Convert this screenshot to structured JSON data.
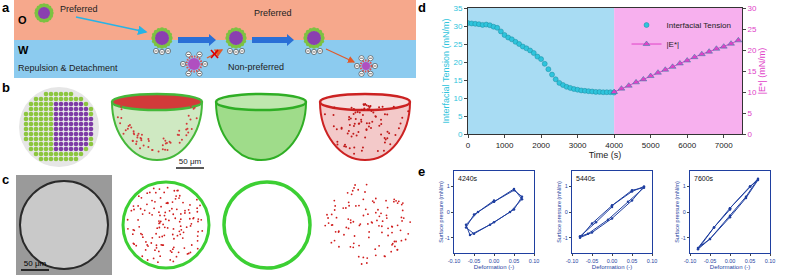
{
  "figure_panels": {
    "a": {
      "label": "a",
      "oil": "O",
      "water": "W",
      "arrow_top": "Preferred",
      "left": "Repulsion & Detachment",
      "cross": "Non-preferred",
      "arrow_right": "Preferred"
    },
    "b": {
      "label": "b",
      "scale_bar": "50 μm"
    },
    "c": {
      "label": "c",
      "scale_bar": "50 μm"
    }
  },
  "chart_data": [
    {
      "panel": "d",
      "type": "scatter",
      "xlabel": "Time (s)",
      "ylabel": "Interfacial Tension (mN/m)",
      "y2label": "|E*| (mN/m)",
      "xlim": [
        0,
        7500
      ],
      "xticks": [
        0,
        1000,
        2000,
        3000,
        4000,
        5000,
        6000,
        7000
      ],
      "ylim": [
        0,
        35
      ],
      "yticks": [
        0,
        5,
        10,
        15,
        20,
        25,
        30,
        35
      ],
      "y2lim": [
        0,
        30
      ],
      "y2ticks": [
        0,
        5,
        10,
        15,
        20,
        25,
        30
      ],
      "legend": "top right",
      "shaded_regions": [
        {
          "x0": 0,
          "x1": 4000,
          "color": "#a8dcf3"
        },
        {
          "x0": 4000,
          "x1": 7500,
          "color": "#f7b0ee"
        }
      ],
      "series": [
        {
          "name": "Interfacial Tension",
          "color": "#2ec4dc",
          "marker": "circle",
          "x": [
            0,
            100,
            200,
            300,
            400,
            500,
            600,
            700,
            800,
            900,
            1000,
            1100,
            1200,
            1300,
            1400,
            1500,
            1600,
            1700,
            1800,
            1900,
            2000,
            2100,
            2200,
            2300,
            2400,
            2500,
            2600,
            2700,
            2800,
            2900,
            3000,
            3100,
            3200,
            3300,
            3400,
            3500,
            3600,
            3700,
            3800,
            3900,
            4000
          ],
          "values": [
            30.8,
            30.7,
            30.6,
            30.5,
            30.3,
            30.4,
            30.2,
            29.8,
            29.5,
            28.5,
            27.5,
            26.8,
            26.3,
            25.6,
            25.0,
            24.3,
            23.8,
            23.2,
            22.5,
            21.5,
            20.8,
            19.5,
            18.0,
            16.5,
            15.2,
            14.2,
            13.6,
            13.1,
            12.8,
            12.5,
            12.3,
            12.1,
            12.0,
            11.9,
            11.8,
            11.7,
            11.7,
            11.6,
            11.6,
            11.6,
            11.5
          ]
        },
        {
          "name": "|E*|",
          "color": "#e040c8",
          "marker": "triangle-up",
          "line_style": "solid",
          "axis": "y2",
          "x": [
            4000,
            4200,
            4400,
            4600,
            4800,
            5000,
            5200,
            5400,
            5600,
            5800,
            6000,
            6200,
            6400,
            6600,
            6800,
            7000,
            7200,
            7400
          ],
          "values": [
            10,
            10.8,
            11.5,
            12.3,
            13,
            13.8,
            14.6,
            15.3,
            16,
            16.8,
            17.5,
            18.3,
            19,
            19.6,
            20.3,
            20.8,
            21.5,
            22.3
          ]
        }
      ]
    },
    {
      "panel": "e",
      "type": "line",
      "title": "4240s",
      "color": "#1f3fa0",
      "marker": "circle",
      "xlabel": "Deformation (-)",
      "ylabel": "Surface pressure (mN/m)",
      "xlim": [
        -0.1,
        0.1
      ],
      "xticks": [
        {
          "value": -0.1,
          "label": "-0.10"
        },
        {
          "value": -0.05,
          "label": "-0.05"
        },
        {
          "value": 0,
          "label": "0.00"
        },
        {
          "value": 0.05,
          "label": "0.05"
        },
        {
          "value": 0.1,
          "label": "0.10"
        }
      ],
      "ylim": [
        -1.6,
        1.6
      ],
      "yticks": [
        -1,
        0,
        1
      ],
      "x": [
        0,
        0.05,
        0.07,
        0.05,
        0,
        -0.05,
        -0.07,
        -0.05,
        0,
        0.05,
        0.07,
        0.04,
        -0.01,
        -0.06,
        -0.07,
        -0.04,
        0
      ],
      "values": [
        0.4,
        0.85,
        0.6,
        0.1,
        -0.4,
        -0.85,
        -0.6,
        -0.1,
        0.4,
        0.9,
        0.5,
        0.0,
        -0.5,
        -0.9,
        -0.5,
        0.0,
        0.45
      ]
    },
    {
      "type": "line",
      "title": "5440s",
      "color": "#1f3fa0",
      "marker": "circle",
      "xlabel": "Deformation (-)",
      "ylabel": "Surface pressure (mN/m)",
      "xlim": [
        -0.1,
        0.1
      ],
      "xticks": [
        {
          "value": -0.1,
          "label": "-0.10"
        },
        {
          "value": -0.05,
          "label": "-0.05"
        },
        {
          "value": 0,
          "label": "0.00"
        },
        {
          "value": 0.05,
          "label": "0.05"
        },
        {
          "value": 0.1,
          "label": "0.10"
        }
      ],
      "ylim": [
        -1.6,
        1.6
      ],
      "yticks": [
        -1,
        0,
        1
      ],
      "x": [
        0,
        0.05,
        0.08,
        0.05,
        0,
        -0.05,
        -0.08,
        -0.05,
        0,
        0.05,
        0.08,
        0.04,
        -0.01,
        -0.06,
        -0.08,
        -0.04,
        0
      ],
      "values": [
        0.25,
        0.8,
        1.0,
        0.45,
        -0.25,
        -0.8,
        -1.0,
        -0.45,
        0.25,
        0.85,
        0.95,
        0.4,
        -0.3,
        -0.85,
        -0.95,
        -0.4,
        0.2
      ]
    },
    {
      "type": "line",
      "title": "7600s",
      "color": "#1f3fa0",
      "marker": "circle",
      "xlabel": "Deformation (-)",
      "ylabel": "Surface pressure (mN/m)",
      "xlim": [
        -0.1,
        0.1
      ],
      "xticks": [
        {
          "value": -0.1,
          "label": "-0.10"
        },
        {
          "value": -0.05,
          "label": "-0.05"
        },
        {
          "value": 0,
          "label": "0.00"
        },
        {
          "value": 0.05,
          "label": "0.05"
        },
        {
          "value": 0.1,
          "label": "0.10"
        }
      ],
      "ylim": [
        -1.6,
        1.6
      ],
      "yticks": [
        -1,
        0,
        1
      ],
      "x": [
        0,
        0.05,
        0.07,
        0.04,
        0,
        -0.05,
        -0.08,
        -0.04,
        0,
        0.05,
        0.07,
        0.04,
        0,
        -0.05,
        -0.08,
        -0.04,
        0
      ],
      "values": [
        0.15,
        1.0,
        1.3,
        0.6,
        -0.15,
        -1.05,
        -1.45,
        -0.6,
        0.15,
        1.0,
        1.25,
        0.55,
        -0.2,
        -1.05,
        -1.4,
        -0.6,
        0.1
      ]
    }
  ]
}
